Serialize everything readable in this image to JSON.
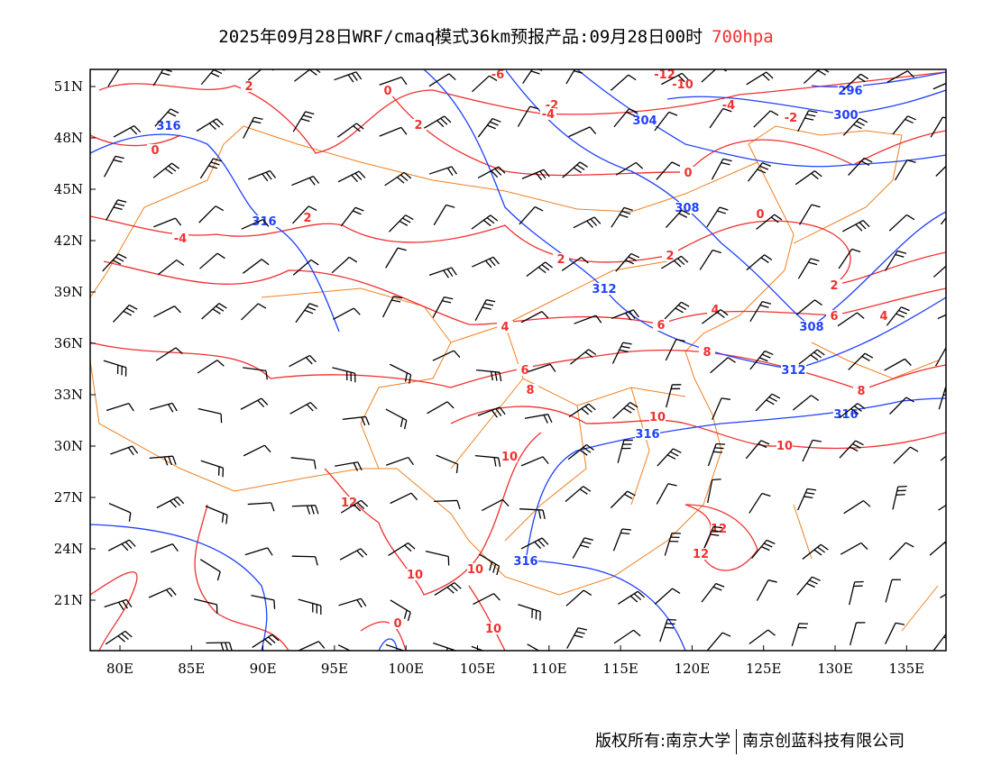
{
  "title": {
    "main": "2025年09月28日WRF/cmaq模式36km预报产品:09月28日00时",
    "level": "700hpa"
  },
  "footer": {
    "owner": "版权所有:南京大学",
    "company": "南京创蓝科技有限公司"
  },
  "colors": {
    "temperature": "#f03030",
    "height": "#2040ff",
    "border": "#f08020",
    "wind": "#000000"
  },
  "map": {
    "lon_range": [
      78,
      138
    ],
    "lat_range": [
      18,
      52
    ],
    "lon_ticks": [
      "80E",
      "85E",
      "90E",
      "95E",
      "100E",
      "105E",
      "110E",
      "115E",
      "120E",
      "125E",
      "130E",
      "135E"
    ],
    "lat_ticks": [
      "51N",
      "48N",
      "45N",
      "42N",
      "39N",
      "36N",
      "33N",
      "30N",
      "27N",
      "24N",
      "21N"
    ],
    "height_labels": [
      "316",
      "316",
      "312",
      "308",
      "304",
      "300",
      "296",
      "308",
      "312",
      "316",
      "316",
      "316"
    ],
    "temp_labels": [
      "2",
      "0",
      "2",
      "0",
      "-4",
      "2",
      "-6",
      "-2",
      "-4",
      "-12",
      "-10",
      "-4",
      "-2",
      "0",
      "0",
      "2",
      "2",
      "2",
      "4",
      "6",
      "4",
      "6",
      "4",
      "8",
      "6",
      "8",
      "8",
      "10",
      "10",
      "10",
      "12",
      "12",
      "12",
      "10",
      "10",
      "10",
      "0"
    ]
  }
}
